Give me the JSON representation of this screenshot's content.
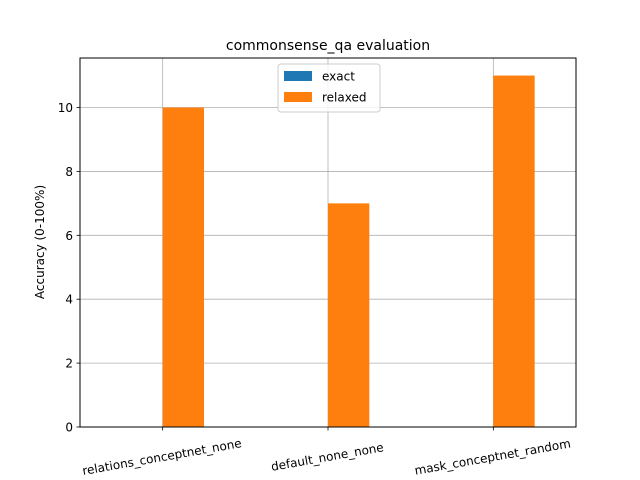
{
  "chart_data": {
    "type": "bar",
    "title": "commonsense_qa evaluation",
    "xlabel": "",
    "ylabel": "Accuracy (0-100%)",
    "categories": [
      "relations_conceptnet_none",
      "default_none_none",
      "mask_conceptnet_random"
    ],
    "series": [
      {
        "name": "exact",
        "values": [
          0,
          0,
          0
        ],
        "color": "#1f77b4"
      },
      {
        "name": "relaxed",
        "values": [
          10,
          7,
          11
        ],
        "color": "#ff7f0e"
      }
    ],
    "ylim": [
      0,
      11.55
    ],
    "yticks": [
      0,
      2,
      4,
      6,
      8,
      10
    ],
    "grid": true,
    "legend_position": "top-center"
  }
}
